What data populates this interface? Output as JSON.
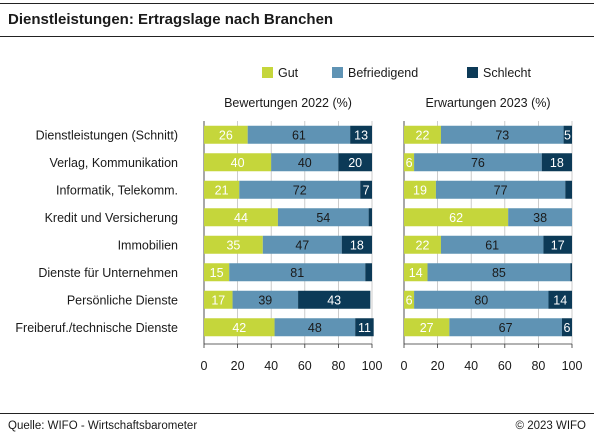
{
  "title": "Dienstleistungen: Ertragslage nach Branchen",
  "source": "Quelle: WIFO - Wirtschaftsbarometer",
  "copyright": "© 2023 WIFO",
  "colors": {
    "gut": "#c5d63b",
    "befriedigend": "#5f93b4",
    "schlecht": "#0c3a57",
    "grid": "#bfbfbf",
    "panel_bg": "#ffffff"
  },
  "chart_data": {
    "type": "bar",
    "orientation": "horizontal",
    "stacked": true,
    "legend": [
      "Gut",
      "Befriedigend",
      "Schlecht"
    ],
    "legend_position": "top-right",
    "categories": [
      "Dienstleistungen (Schnitt)",
      "Verlag, Kommunikation",
      "Informatik, Telekomm.",
      "Kredit und Versicherung",
      "Immobilien",
      "Dienste für Unternehmen",
      "Persönliche Dienste",
      "Freiberuf./technische Dienste"
    ],
    "xlim": [
      0,
      100
    ],
    "ticks": [
      0,
      20,
      40,
      60,
      80,
      100
    ],
    "panels": [
      {
        "title": "Bewertungen 2022 (%)",
        "series": [
          {
            "name": "Gut",
            "values": [
              26,
              40,
              21,
              44,
              35,
              15,
              17,
              42
            ]
          },
          {
            "name": "Befriedigend",
            "values": [
              61,
              40,
              72,
              54,
              47,
              81,
              39,
              48
            ]
          },
          {
            "name": "Schlecht",
            "values": [
              13,
              20,
              7,
              2,
              18,
              4,
              43,
              11
            ]
          }
        ],
        "labels": [
          [
            "26",
            "61",
            "13"
          ],
          [
            "40",
            "40",
            "20"
          ],
          [
            "21",
            "72",
            "7"
          ],
          [
            "44",
            "54",
            ""
          ],
          [
            "35",
            "47",
            "18"
          ],
          [
            "15",
            "81",
            ""
          ],
          [
            "17",
            "39",
            "43"
          ],
          [
            "42",
            "48",
            "11"
          ]
        ]
      },
      {
        "title": "Erwartungen 2023 (%)",
        "series": [
          {
            "name": "Gut",
            "values": [
              22,
              6,
              19,
              62,
              22,
              14,
              6,
              27
            ]
          },
          {
            "name": "Befriedigend",
            "values": [
              73,
              76,
              77,
              38,
              61,
              85,
              80,
              67
            ]
          },
          {
            "name": "Schlecht",
            "values": [
              5,
              18,
              4,
              0,
              17,
              1,
              14,
              6
            ]
          }
        ],
        "labels": [
          [
            "22",
            "73",
            "5"
          ],
          [
            "6",
            "76",
            "18"
          ],
          [
            "19",
            "77",
            ""
          ],
          [
            "62",
            "38",
            ""
          ],
          [
            "22",
            "61",
            "17"
          ],
          [
            "14",
            "85",
            ""
          ],
          [
            "6",
            "80",
            "14"
          ],
          [
            "27",
            "67",
            "6"
          ]
        ]
      }
    ]
  }
}
